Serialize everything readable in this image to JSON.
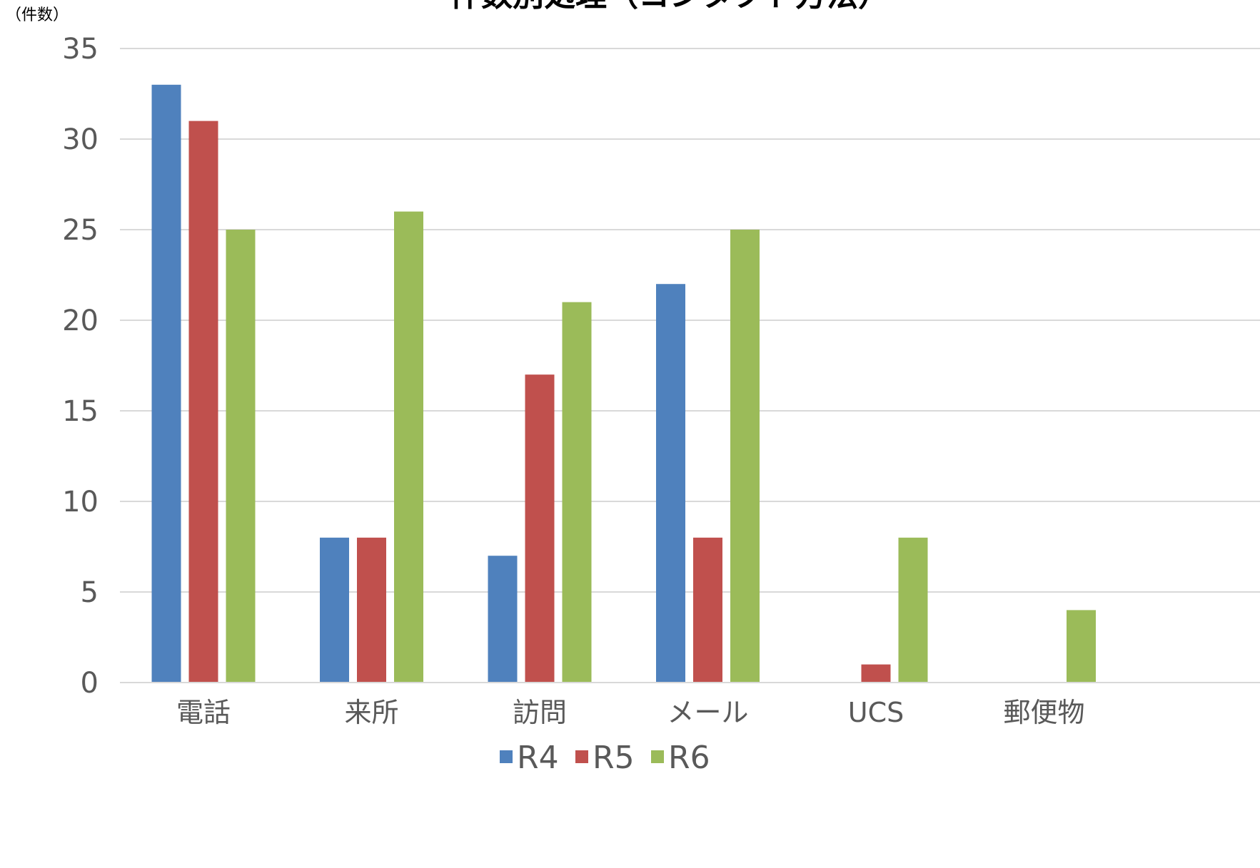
{
  "chart_data": {
    "type": "bar",
    "title": "件数別処理（コンタクト方法）",
    "unit_label": "（件数）",
    "ylim": [
      0,
      35
    ],
    "yticks": [
      0,
      5,
      10,
      15,
      20,
      25,
      30,
      35
    ],
    "grid": true,
    "legend_position": "bottom",
    "categories": [
      "電話",
      "来所",
      "訪問",
      "メール",
      "UCS",
      "郵便物"
    ],
    "series": [
      {
        "name": "R4",
        "color": "#4F81BD",
        "values": [
          33,
          8,
          7,
          22,
          0,
          0
        ]
      },
      {
        "name": "R5",
        "color": "#C0504D",
        "values": [
          31,
          8,
          17,
          8,
          1,
          0
        ]
      },
      {
        "name": "R6",
        "color": "#9BBB59",
        "values": [
          25,
          26,
          21,
          25,
          8,
          4
        ]
      }
    ]
  }
}
